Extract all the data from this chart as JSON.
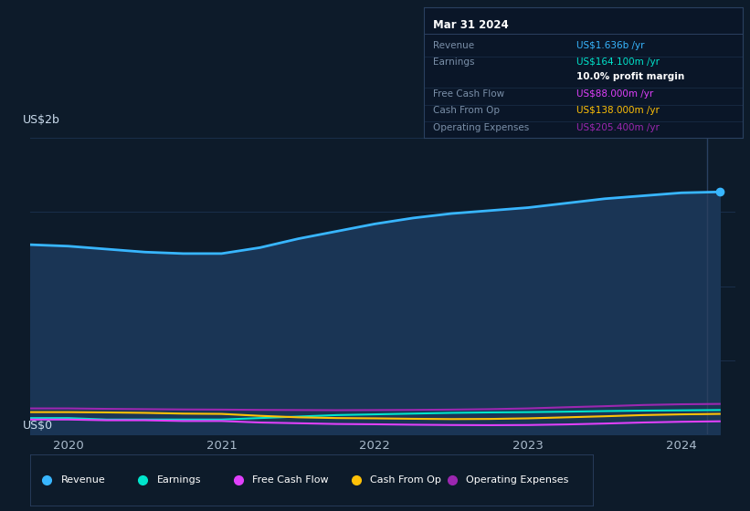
{
  "background_color": "#0d1b2a",
  "plot_bg_color": "#0d1b2a",
  "y_label_top": "US$2b",
  "y_label_bottom": "US$0",
  "x_ticks": [
    2020,
    2021,
    2022,
    2023,
    2024
  ],
  "series_colors": {
    "Revenue": "#38b6ff",
    "Earnings": "#00e5cc",
    "Free Cash Flow": "#e040fb",
    "Cash From Op": "#ffc107",
    "Operating Expenses": "#9c27b0"
  },
  "fill_color": "#1a3555",
  "revenue_x": [
    2019.75,
    2020.0,
    2020.25,
    2020.5,
    2020.75,
    2021.0,
    2021.25,
    2021.5,
    2021.75,
    2022.0,
    2022.25,
    2022.5,
    2022.75,
    2023.0,
    2023.25,
    2023.5,
    2023.75,
    2024.0,
    2024.25
  ],
  "revenue_y": [
    1.28,
    1.27,
    1.25,
    1.23,
    1.22,
    1.22,
    1.26,
    1.32,
    1.37,
    1.42,
    1.46,
    1.49,
    1.51,
    1.53,
    1.56,
    1.59,
    1.61,
    1.63,
    1.636
  ],
  "earnings_y": [
    0.11,
    0.11,
    0.1,
    0.1,
    0.1,
    0.1,
    0.11,
    0.12,
    0.13,
    0.135,
    0.14,
    0.145,
    0.148,
    0.15,
    0.153,
    0.157,
    0.16,
    0.162,
    0.1641
  ],
  "free_cash_y": [
    0.1,
    0.1,
    0.095,
    0.095,
    0.09,
    0.09,
    0.08,
    0.075,
    0.07,
    0.068,
    0.065,
    0.063,
    0.062,
    0.063,
    0.067,
    0.073,
    0.08,
    0.085,
    0.088
  ],
  "cash_from_op_y": [
    0.15,
    0.15,
    0.148,
    0.145,
    0.14,
    0.138,
    0.125,
    0.115,
    0.11,
    0.108,
    0.105,
    0.103,
    0.104,
    0.108,
    0.115,
    0.122,
    0.13,
    0.135,
    0.138
  ],
  "op_expenses_y": [
    0.175,
    0.175,
    0.172,
    0.17,
    0.168,
    0.167,
    0.165,
    0.164,
    0.163,
    0.164,
    0.165,
    0.167,
    0.17,
    0.175,
    0.183,
    0.19,
    0.198,
    0.203,
    0.2054
  ],
  "vertical_line_x": 2024.17,
  "ylim": [
    0,
    2.0
  ],
  "xlim": [
    2019.75,
    2024.35
  ],
  "grid_color": "#1a2f4a",
  "legend_items": [
    {
      "label": "Revenue",
      "color": "#38b6ff"
    },
    {
      "label": "Earnings",
      "color": "#00e5cc"
    },
    {
      "label": "Free Cash Flow",
      "color": "#e040fb"
    },
    {
      "label": "Cash From Op",
      "color": "#ffc107"
    },
    {
      "label": "Operating Expenses",
      "color": "#9c27b0"
    }
  ],
  "tooltip": {
    "title": "Mar 31 2024",
    "bg_color": "#0a1628",
    "border_color": "#2a4060",
    "rows": [
      {
        "label": "Revenue",
        "label_color": "#7a8fa8",
        "value": "US$1.636b /yr",
        "value_color": "#38b6ff"
      },
      {
        "label": "Earnings",
        "label_color": "#7a8fa8",
        "value": "US$164.100m /yr",
        "value_color": "#00e5cc"
      },
      {
        "label": "",
        "label_color": "#7a8fa8",
        "value": "10.0% profit margin",
        "value_color": "#ffffff",
        "bold": true
      },
      {
        "label": "Free Cash Flow",
        "label_color": "#7a8fa8",
        "value": "US$88.000m /yr",
        "value_color": "#e040fb"
      },
      {
        "label": "Cash From Op",
        "label_color": "#7a8fa8",
        "value": "US$138.000m /yr",
        "value_color": "#ffc107"
      },
      {
        "label": "Operating Expenses",
        "label_color": "#7a8fa8",
        "value": "US$205.400m /yr",
        "value_color": "#9c27b0"
      }
    ]
  }
}
